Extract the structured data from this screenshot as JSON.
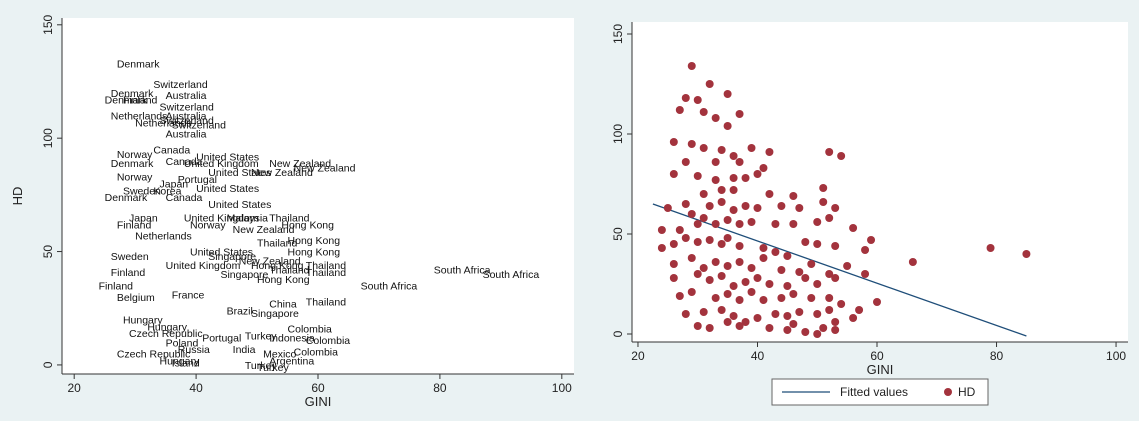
{
  "chart_data": [
    {
      "type": "scatter",
      "xlabel": "GINI",
      "ylabel": "HD",
      "xticks": [
        20,
        40,
        60,
        80,
        100
      ],
      "yticks": [
        0,
        50,
        100,
        150
      ],
      "xlim": [
        18,
        102
      ],
      "ylim": [
        -4,
        153
      ],
      "grid": false,
      "legend": "none",
      "marker": "country-name labels",
      "points": [
        {
          "label": "Denmark",
          "x": 27,
          "y": 133
        },
        {
          "label": "Switzerland",
          "x": 33,
          "y": 124
        },
        {
          "label": "Denmark",
          "x": 26,
          "y": 120
        },
        {
          "label": "Australia",
          "x": 35,
          "y": 119
        },
        {
          "label": "Denmark",
          "x": 25,
          "y": 117
        },
        {
          "label": "Finland",
          "x": 28,
          "y": 117
        },
        {
          "label": "Switzerland",
          "x": 34,
          "y": 114
        },
        {
          "label": "Netherlands",
          "x": 26,
          "y": 110
        },
        {
          "label": "Australia",
          "x": 35,
          "y": 110
        },
        {
          "label": "Switzerland",
          "x": 34,
          "y": 108
        },
        {
          "label": "Netherlands",
          "x": 30,
          "y": 107
        },
        {
          "label": "Switzerland",
          "x": 36,
          "y": 106
        },
        {
          "label": "Australia",
          "x": 35,
          "y": 102
        },
        {
          "label": "Canada",
          "x": 33,
          "y": 95
        },
        {
          "label": "Norway",
          "x": 27,
          "y": 93
        },
        {
          "label": "United States",
          "x": 40,
          "y": 92
        },
        {
          "label": "Canada",
          "x": 35,
          "y": 90
        },
        {
          "label": "Denmark",
          "x": 26,
          "y": 89
        },
        {
          "label": "United Kingdom",
          "x": 38,
          "y": 89
        },
        {
          "label": "New Zealand",
          "x": 52,
          "y": 89
        },
        {
          "label": "New Zealand",
          "x": 56,
          "y": 87
        },
        {
          "label": "United States",
          "x": 42,
          "y": 85
        },
        {
          "label": "New Zealand",
          "x": 49,
          "y": 85
        },
        {
          "label": "Norway",
          "x": 27,
          "y": 83
        },
        {
          "label": "Portugal",
          "x": 37,
          "y": 82
        },
        {
          "label": "Japan",
          "x": 34,
          "y": 80
        },
        {
          "label": "United States",
          "x": 40,
          "y": 78
        },
        {
          "label": "Sweden",
          "x": 28,
          "y": 77
        },
        {
          "label": "Korea",
          "x": 33,
          "y": 77
        },
        {
          "label": "Denmark",
          "x": 25,
          "y": 74
        },
        {
          "label": "Canada",
          "x": 35,
          "y": 74
        },
        {
          "label": "United States",
          "x": 42,
          "y": 71
        },
        {
          "label": "Japan",
          "x": 29,
          "y": 65
        },
        {
          "label": "United Kingdom",
          "x": 38,
          "y": 65
        },
        {
          "label": "Malaysia",
          "x": 45,
          "y": 65
        },
        {
          "label": "Thailand",
          "x": 52,
          "y": 65
        },
        {
          "label": "Hong Kong",
          "x": 54,
          "y": 62
        },
        {
          "label": "Finland",
          "x": 27,
          "y": 62
        },
        {
          "label": "Norway",
          "x": 39,
          "y": 62
        },
        {
          "label": "New Zealand",
          "x": 46,
          "y": 60
        },
        {
          "label": "Hong Kong",
          "x": 55,
          "y": 55
        },
        {
          "label": "Thailand",
          "x": 50,
          "y": 54
        },
        {
          "label": "Netherlands",
          "x": 30,
          "y": 57
        },
        {
          "label": "United States",
          "x": 39,
          "y": 50
        },
        {
          "label": "Hong Kong",
          "x": 55,
          "y": 50
        },
        {
          "label": "Sweden",
          "x": 26,
          "y": 48
        },
        {
          "label": "Singapore",
          "x": 42,
          "y": 48
        },
        {
          "label": "New Zealand",
          "x": 47,
          "y": 46
        },
        {
          "label": "Thailand",
          "x": 58,
          "y": 44
        },
        {
          "label": "Hong Kong",
          "x": 49,
          "y": 44
        },
        {
          "label": "Thailand",
          "x": 52,
          "y": 42
        },
        {
          "label": "United Kingdom",
          "x": 35,
          "y": 44
        },
        {
          "label": "Finland",
          "x": 26,
          "y": 41
        },
        {
          "label": "Thailand",
          "x": 58,
          "y": 41
        },
        {
          "label": "South Africa",
          "x": 79,
          "y": 42
        },
        {
          "label": "South Africa",
          "x": 87,
          "y": 40
        },
        {
          "label": "Hong Kong",
          "x": 50,
          "y": 38
        },
        {
          "label": "Singapore",
          "x": 44,
          "y": 40
        },
        {
          "label": "South Africa",
          "x": 67,
          "y": 35
        },
        {
          "label": "Finland",
          "x": 24,
          "y": 35
        },
        {
          "label": "Belgium",
          "x": 27,
          "y": 30
        },
        {
          "label": "France",
          "x": 36,
          "y": 31
        },
        {
          "label": "Thailand",
          "x": 58,
          "y": 28
        },
        {
          "label": "China",
          "x": 52,
          "y": 27
        },
        {
          "label": "Hungary",
          "x": 28,
          "y": 20
        },
        {
          "label": "Brazil",
          "x": 45,
          "y": 24
        },
        {
          "label": "Singapore",
          "x": 49,
          "y": 23
        },
        {
          "label": "Hungary",
          "x": 32,
          "y": 17
        },
        {
          "label": "Czech Republic",
          "x": 29,
          "y": 14
        },
        {
          "label": "Colombia",
          "x": 55,
          "y": 16
        },
        {
          "label": "Portugal",
          "x": 41,
          "y": 12
        },
        {
          "label": "Turkey",
          "x": 48,
          "y": 13
        },
        {
          "label": "Indonesia",
          "x": 52,
          "y": 12
        },
        {
          "label": "Colombia",
          "x": 58,
          "y": 11
        },
        {
          "label": "Poland",
          "x": 35,
          "y": 10
        },
        {
          "label": "Russia",
          "x": 37,
          "y": 7
        },
        {
          "label": "India",
          "x": 46,
          "y": 7
        },
        {
          "label": "Colombia",
          "x": 56,
          "y": 6
        },
        {
          "label": "Czech Republic",
          "x": 27,
          "y": 5
        },
        {
          "label": "Mexico",
          "x": 51,
          "y": 5
        },
        {
          "label": "Hungary",
          "x": 34,
          "y": 2
        },
        {
          "label": "Island",
          "x": 36,
          "y": 1
        },
        {
          "label": "Argentina",
          "x": 52,
          "y": 2
        },
        {
          "label": "Turkey",
          "x": 48,
          "y": 0
        },
        {
          "label": "Turkey",
          "x": 50,
          "y": -1
        }
      ]
    },
    {
      "type": "scatter",
      "xlabel": "GINI",
      "ylabel": "",
      "xticks": [
        20,
        40,
        60,
        80,
        100
      ],
      "yticks": [
        0,
        50,
        100,
        150
      ],
      "xlim": [
        19,
        102
      ],
      "ylim": [
        -4,
        156
      ],
      "grid": false,
      "legend": "bottom",
      "series": [
        {
          "name": "Fitted values",
          "type": "line",
          "color": "#1f4e79",
          "x": [
            22.5,
            85
          ],
          "y": [
            65,
            -1
          ]
        },
        {
          "name": "HD",
          "type": "scatter",
          "color": "#a3333d",
          "points": [
            [
              29,
              134
            ],
            [
              32,
              125
            ],
            [
              28,
              118
            ],
            [
              30,
              117
            ],
            [
              35,
              120
            ],
            [
              27,
              112
            ],
            [
              31,
              111
            ],
            [
              33,
              108
            ],
            [
              37,
              110
            ],
            [
              35,
              104
            ],
            [
              26,
              96
            ],
            [
              29,
              95
            ],
            [
              31,
              93
            ],
            [
              34,
              92
            ],
            [
              39,
              93
            ],
            [
              36,
              89
            ],
            [
              42,
              91
            ],
            [
              28,
              86
            ],
            [
              33,
              86
            ],
            [
              37,
              86
            ],
            [
              41,
              83
            ],
            [
              52,
              91
            ],
            [
              54,
              89
            ],
            [
              26,
              80
            ],
            [
              30,
              79
            ],
            [
              33,
              77
            ],
            [
              36,
              78
            ],
            [
              38,
              78
            ],
            [
              40,
              80
            ],
            [
              31,
              70
            ],
            [
              34,
              72
            ],
            [
              36,
              72
            ],
            [
              42,
              70
            ],
            [
              46,
              69
            ],
            [
              51,
              73
            ],
            [
              25,
              63
            ],
            [
              28,
              65
            ],
            [
              29,
              60
            ],
            [
              32,
              64
            ],
            [
              34,
              66
            ],
            [
              36,
              62
            ],
            [
              38,
              64
            ],
            [
              40,
              63
            ],
            [
              44,
              64
            ],
            [
              47,
              63
            ],
            [
              51,
              66
            ],
            [
              53,
              63
            ],
            [
              24,
              52
            ],
            [
              27,
              52
            ],
            [
              30,
              55
            ],
            [
              31,
              58
            ],
            [
              33,
              55
            ],
            [
              35,
              57
            ],
            [
              37,
              55
            ],
            [
              39,
              56
            ],
            [
              43,
              55
            ],
            [
              46,
              55
            ],
            [
              50,
              56
            ],
            [
              52,
              58
            ],
            [
              56,
              53
            ],
            [
              24,
              43
            ],
            [
              26,
              45
            ],
            [
              28,
              48
            ],
            [
              30,
              46
            ],
            [
              32,
              47
            ],
            [
              34,
              45
            ],
            [
              35,
              48
            ],
            [
              37,
              44
            ],
            [
              41,
              43
            ],
            [
              43,
              41
            ],
            [
              45,
              39
            ],
            [
              48,
              46
            ],
            [
              50,
              45
            ],
            [
              53,
              44
            ],
            [
              59,
              47
            ],
            [
              58,
              42
            ],
            [
              66,
              36
            ],
            [
              79,
              43
            ],
            [
              85,
              40
            ],
            [
              26,
              35
            ],
            [
              29,
              38
            ],
            [
              31,
              33
            ],
            [
              33,
              36
            ],
            [
              35,
              34
            ],
            [
              37,
              36
            ],
            [
              39,
              33
            ],
            [
              41,
              38
            ],
            [
              44,
              32
            ],
            [
              47,
              31
            ],
            [
              49,
              35
            ],
            [
              52,
              30
            ],
            [
              55,
              34
            ],
            [
              58,
              30
            ],
            [
              60,
              16
            ],
            [
              26,
              28
            ],
            [
              30,
              30
            ],
            [
              32,
              27
            ],
            [
              34,
              29
            ],
            [
              36,
              24
            ],
            [
              38,
              26
            ],
            [
              40,
              28
            ],
            [
              42,
              25
            ],
            [
              45,
              24
            ],
            [
              48,
              28
            ],
            [
              50,
              25
            ],
            [
              53,
              28
            ],
            [
              27,
              19
            ],
            [
              29,
              21
            ],
            [
              33,
              18
            ],
            [
              35,
              20
            ],
            [
              37,
              17
            ],
            [
              39,
              21
            ],
            [
              41,
              17
            ],
            [
              44,
              18
            ],
            [
              46,
              20
            ],
            [
              49,
              18
            ],
            [
              52,
              18
            ],
            [
              54,
              15
            ],
            [
              57,
              12
            ],
            [
              28,
              10
            ],
            [
              31,
              11
            ],
            [
              34,
              12
            ],
            [
              36,
              9
            ],
            [
              38,
              6
            ],
            [
              40,
              8
            ],
            [
              43,
              10
            ],
            [
              45,
              9
            ],
            [
              47,
              11
            ],
            [
              50,
              10
            ],
            [
              52,
              12
            ],
            [
              53,
              6
            ],
            [
              56,
              8
            ],
            [
              30,
              4
            ],
            [
              32,
              3
            ],
            [
              35,
              6
            ],
            [
              37,
              4
            ],
            [
              42,
              3
            ],
            [
              45,
              2
            ],
            [
              46,
              5
            ],
            [
              48,
              1
            ],
            [
              50,
              0
            ],
            [
              51,
              3
            ],
            [
              53,
              2
            ]
          ]
        }
      ]
    }
  ]
}
